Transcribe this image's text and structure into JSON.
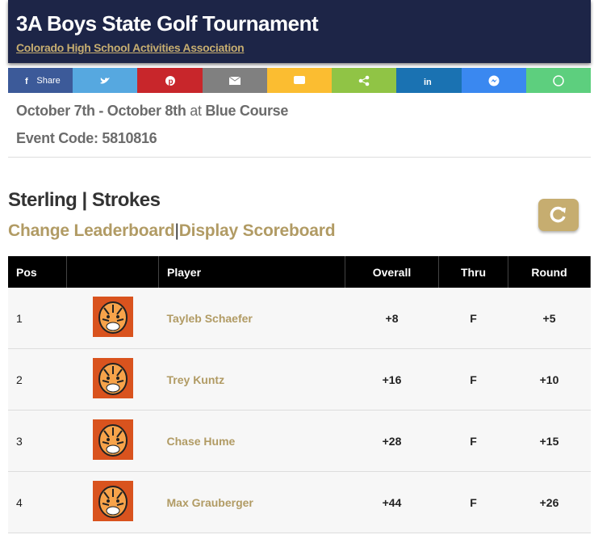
{
  "header": {
    "title": "3A Boys State Golf Tournament",
    "subtitle": "Colorado High School Activities Association"
  },
  "share": {
    "label": "Share"
  },
  "event": {
    "dates": "October 7th - October 8th",
    "at": "at",
    "venue": "Blue Course",
    "code_label": "Event Code:",
    "code": "5810816"
  },
  "leaderboard": {
    "title": "Sterling | Strokes",
    "links": [
      "Change Leaderboard",
      "Display Scoreboard"
    ],
    "separator": "|"
  },
  "table": {
    "headers": {
      "pos": "Pos",
      "player": "Player",
      "overall": "Overall",
      "thru": "Thru",
      "round": "Round"
    },
    "rows": [
      {
        "pos": "1",
        "player": "Tayleb Schaefer",
        "overall": "+8",
        "thru": "F",
        "round": "+5"
      },
      {
        "pos": "2",
        "player": "Trey Kuntz",
        "overall": "+16",
        "thru": "F",
        "round": "+10"
      },
      {
        "pos": "3",
        "player": "Chase Hume",
        "overall": "+28",
        "thru": "F",
        "round": "+15"
      },
      {
        "pos": "4",
        "player": "Max Grauberger",
        "overall": "+44",
        "thru": "F",
        "round": "+26"
      }
    ]
  }
}
